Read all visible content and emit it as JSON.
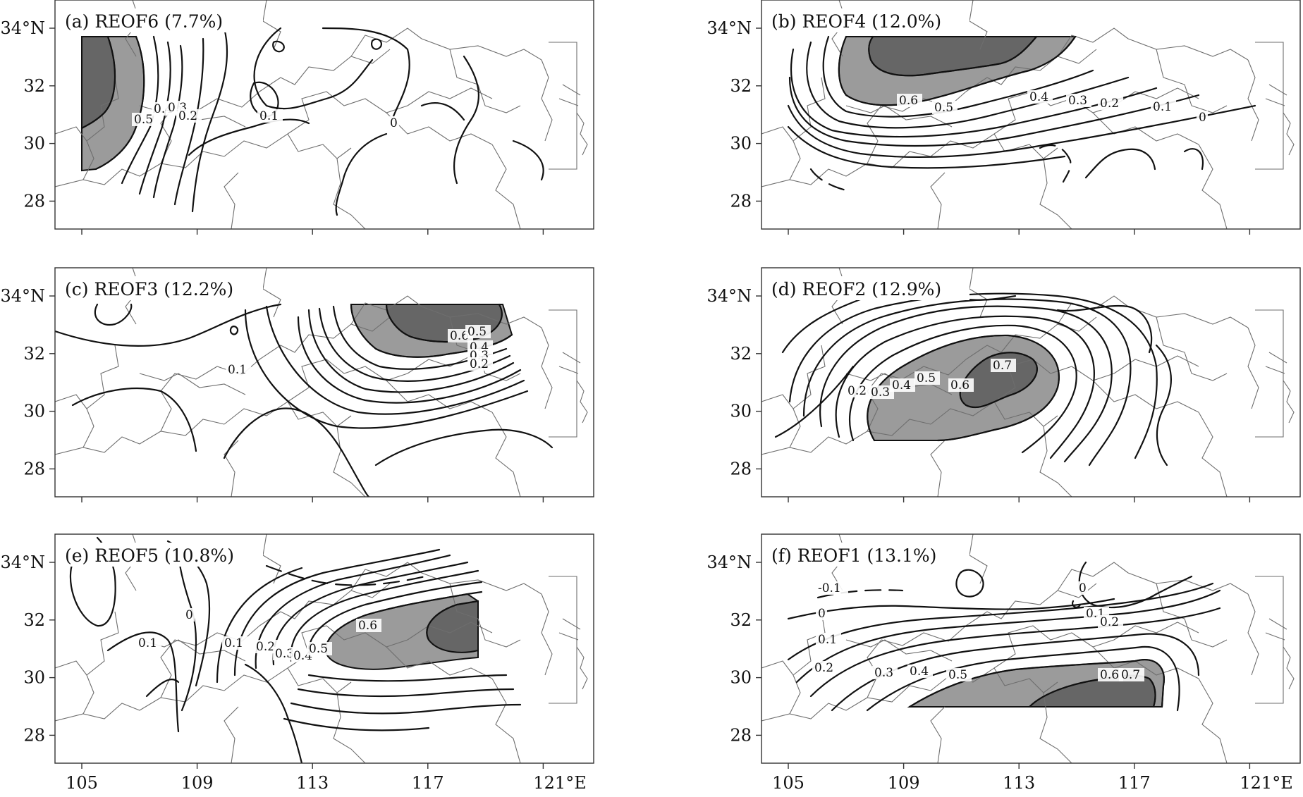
{
  "map": {
    "x_ticks": [
      "105",
      "109",
      "113",
      "117",
      "121°E"
    ],
    "y_ticks": [
      "34°N",
      "32",
      "30",
      "28"
    ],
    "x_tick_values": [
      105,
      109,
      113,
      117,
      121
    ],
    "y_tick_values": [
      34,
      32,
      30,
      28
    ],
    "colors": {
      "light_shade": "#9b9b9b",
      "dark_shade": "#666666",
      "contour": "#111111",
      "boundaries": "#6e6e6e"
    }
  },
  "panels": [
    {
      "id": "a",
      "title": "(a) REOF6 (7.7%)",
      "contour_labels": [
        "0.5",
        "0.4",
        "0.3",
        "0.2",
        "0.1",
        "0"
      ]
    },
    {
      "id": "b",
      "title": "(b) REOF4 (12.0%)",
      "contour_labels": [
        "0.6",
        "0.5",
        "0.4",
        "0.3",
        "0.2",
        "0.1",
        "0"
      ]
    },
    {
      "id": "c",
      "title": "(c) REOF3 (12.2%)",
      "contour_labels": [
        "0.6",
        "0.5",
        "0.4",
        "0.3",
        "0.2",
        "0.1"
      ]
    },
    {
      "id": "d",
      "title": "(d) REOF2 (12.9%)",
      "contour_labels": [
        "0.2",
        "0.3",
        "0.4",
        "0.5",
        "0.6",
        "0.7"
      ]
    },
    {
      "id": "e",
      "title": "(e) REOF5 (10.8%)",
      "contour_labels": [
        "0.1",
        "0",
        "0.1",
        "0.2",
        "0.3",
        "0.4",
        "0.5",
        "0.6"
      ]
    },
    {
      "id": "f",
      "title": "(f) REOF1 (13.1%)",
      "contour_labels": [
        "-0.1",
        "0",
        "0.1",
        "0.2",
        "0.3",
        "0.4",
        "0.5",
        "0.6",
        "0.7",
        "0",
        "0.1",
        "0.2"
      ]
    }
  ]
}
